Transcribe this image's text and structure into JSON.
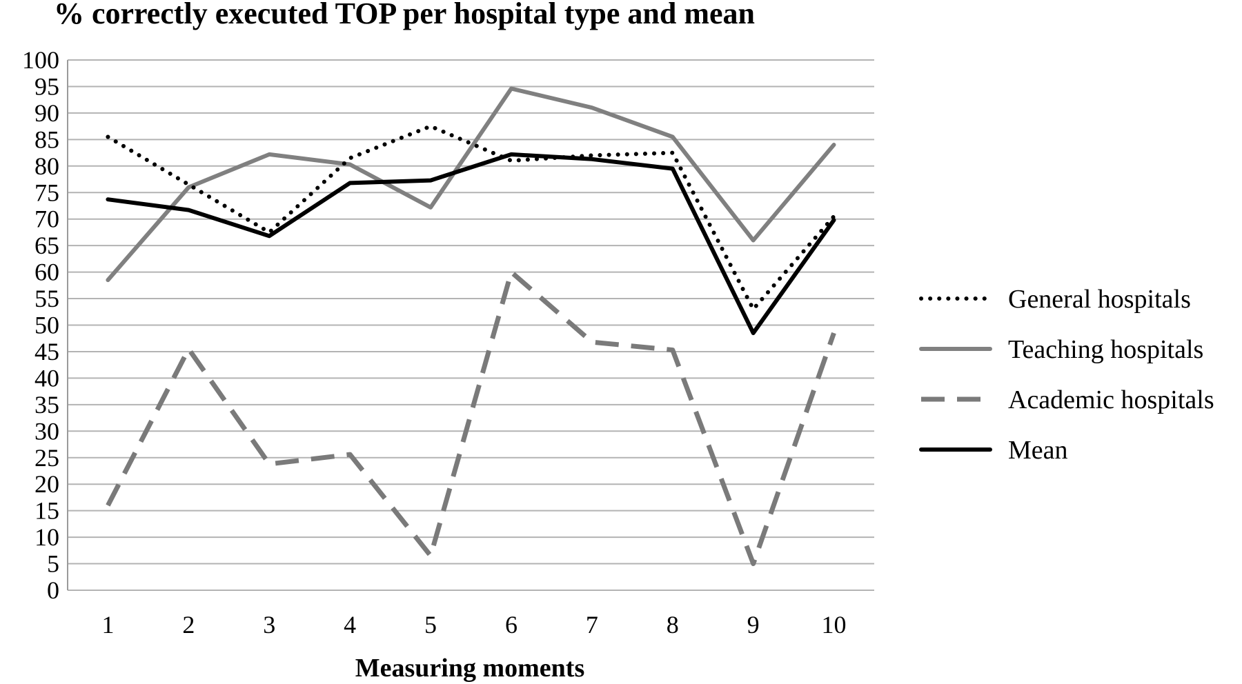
{
  "chart_data": {
    "type": "line",
    "title": "% correctly executed TOP per hospital type and mean",
    "xlabel": "Measuring moments",
    "ylabel": "",
    "categories": [
      "1",
      "2",
      "3",
      "4",
      "5",
      "6",
      "7",
      "8",
      "9",
      "10"
    ],
    "ylim": [
      0,
      100
    ],
    "yticks": [
      "0",
      "5",
      "10",
      "15",
      "20",
      "25",
      "30",
      "35",
      "40",
      "45",
      "50",
      "55",
      "60",
      "65",
      "70",
      "75",
      "80",
      "85",
      "90",
      "95",
      "100"
    ],
    "grid": true,
    "legend_position": "right",
    "series": [
      {
        "name": "General hospitals",
        "style": "dotted",
        "color": "#000000",
        "values": [
          85.5,
          76.5,
          67.5,
          81.5,
          87.5,
          81.0,
          82.0,
          82.5,
          53.0,
          70.5
        ]
      },
      {
        "name": "Teaching hospitals",
        "style": "solid",
        "color": "#808080",
        "values": [
          58.5,
          76.0,
          82.2,
          80.3,
          72.2,
          94.6,
          91.0,
          85.5,
          66.0,
          84.0
        ]
      },
      {
        "name": "Academic hospitals",
        "style": "dashed",
        "color": "#7a7a7a",
        "values": [
          16.0,
          45.5,
          23.8,
          25.6,
          6.5,
          60.0,
          46.8,
          45.3,
          5.0,
          48.5
        ]
      },
      {
        "name": "Mean",
        "style": "solid",
        "color": "#000000",
        "values": [
          73.7,
          71.7,
          66.8,
          76.8,
          77.3,
          82.2,
          81.3,
          79.5,
          48.5,
          69.8
        ]
      }
    ]
  }
}
